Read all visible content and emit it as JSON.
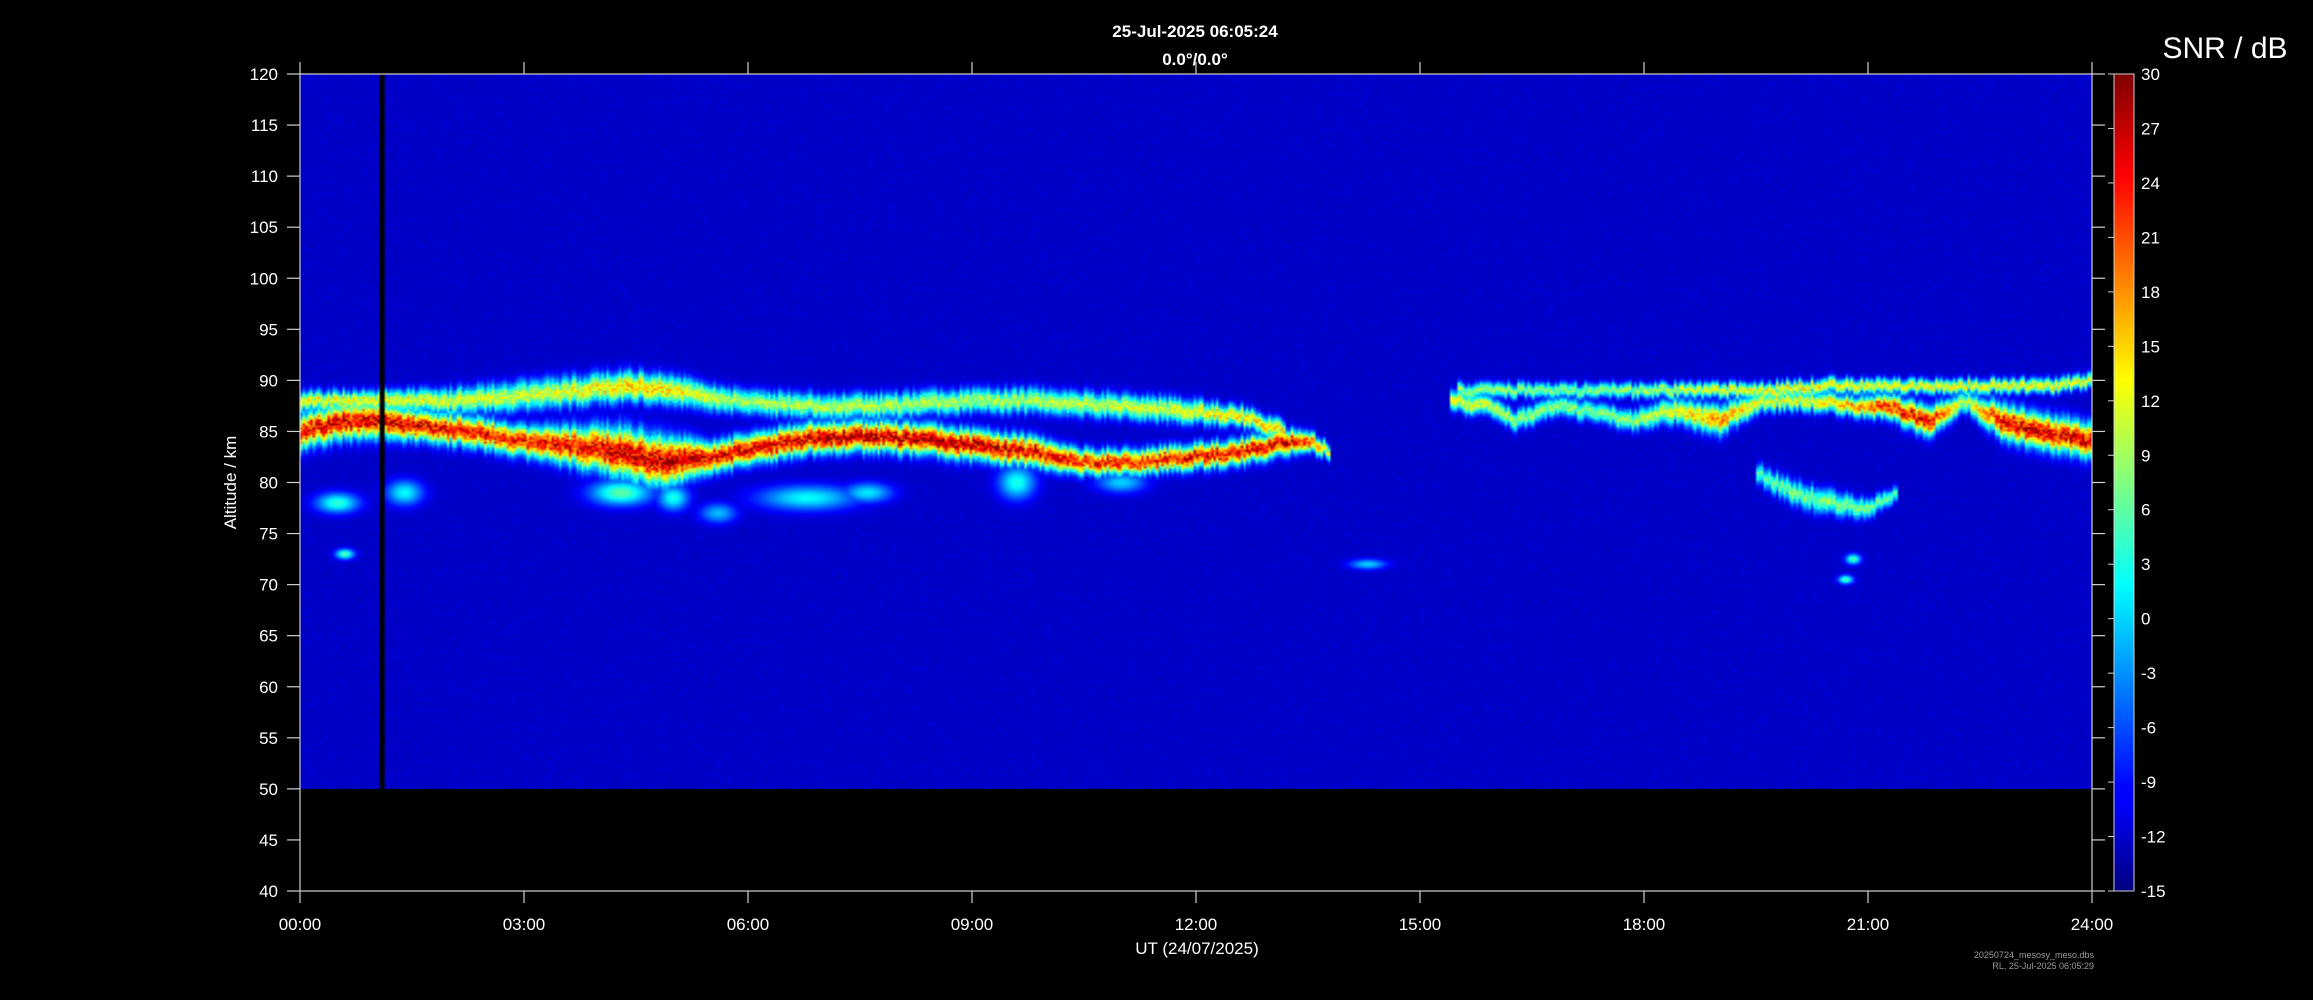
{
  "chart_data": {
    "type": "heatmap",
    "title": "25-Jul-2025 06:05:24",
    "subtitle": "0.0°/0.0°",
    "xlabel": "UT (24/07/2025)",
    "ylabel": "Altitude / km",
    "x_ticks": [
      "00:00",
      "03:00",
      "06:00",
      "09:00",
      "12:00",
      "15:00",
      "18:00",
      "21:00",
      "24:00"
    ],
    "xlim_hours": [
      0,
      24
    ],
    "ylim": [
      40,
      120
    ],
    "y_ticks": [
      40,
      45,
      50,
      55,
      60,
      65,
      70,
      75,
      80,
      85,
      90,
      95,
      100,
      105,
      110,
      115,
      120
    ],
    "data_altitude_range": [
      50,
      120
    ],
    "data_gap": {
      "start_hour": 1.08,
      "end_hour": 1.15
    },
    "colorbar": {
      "title": "SNR / dB",
      "range": [
        -15,
        30
      ],
      "ticks": [
        30,
        27,
        24,
        21,
        18,
        15,
        12,
        9,
        6,
        3,
        0,
        -3,
        -6,
        -9,
        -12,
        -15
      ],
      "colormap": "jet"
    },
    "background_snr": -12,
    "echo_layers": [
      {
        "name": "",
        "t": [
          0.0,
          0.6,
          1.0,
          1.6,
          2.3,
          3.0,
          3.7,
          4.3,
          4.9,
          5.5,
          6.2,
          7.0,
          7.8,
          8.6,
          9.2,
          9.8,
          10.5,
          11.2,
          12.0,
          12.6,
          13.2,
          13.5,
          13.8
        ],
        "alt": [
          85,
          86,
          86,
          85.5,
          85,
          84,
          83.5,
          83,
          82,
          82.5,
          83.5,
          84.5,
          84.5,
          84,
          83.5,
          83,
          82,
          82,
          82.5,
          83,
          84,
          84,
          83
        ],
        "thickness": [
          3.5,
          3.5,
          3.5,
          3,
          3,
          3,
          4,
          5,
          5,
          3,
          3,
          3,
          3,
          3,
          3,
          3,
          2.5,
          2.5,
          2.5,
          2.5,
          2.5,
          2,
          1.5
        ],
        "peak_snr": [
          26,
          28,
          28,
          27,
          26,
          25,
          26,
          28,
          29,
          27,
          27,
          29,
          29,
          29,
          28,
          27,
          25,
          25,
          26,
          27,
          27,
          24,
          12
        ]
      },
      {
        "name": "",
        "t": [
          0.0,
          1.0,
          2.0,
          3.0,
          3.8,
          4.4,
          5.0,
          5.8,
          6.8,
          7.8,
          9.0,
          9.8,
          11.0,
          11.8,
          12.6,
          13.2
        ],
        "alt": [
          88,
          88,
          88,
          88.5,
          89,
          89.5,
          89,
          88,
          87.5,
          87.5,
          88,
          88,
          87.5,
          87,
          86.5,
          85
        ],
        "thickness": [
          2,
          2,
          2.5,
          3,
          3,
          3,
          3,
          2.5,
          2.5,
          2.5,
          2.5,
          2.5,
          2.5,
          2.5,
          2,
          2
        ],
        "peak_snr": [
          14,
          14,
          13,
          12,
          14,
          17,
          15,
          10,
          11,
          11,
          10,
          11,
          12,
          13,
          16,
          16
        ]
      },
      {
        "name": "",
        "t": [
          15.4,
          15.9,
          16.3,
          16.8,
          17.3,
          17.8,
          18.4,
          19.0,
          19.6,
          20.2,
          20.8,
          21.3,
          21.8,
          22.3,
          22.8,
          23.3,
          23.7,
          24.0
        ],
        "alt": [
          88,
          87.5,
          86,
          87.5,
          87,
          86,
          87,
          86,
          88,
          88,
          87.5,
          87.5,
          86,
          88,
          86,
          85,
          84.5,
          84
        ],
        "thickness": [
          2,
          2,
          2,
          2,
          2,
          2,
          2.5,
          3,
          2,
          2,
          2,
          2.5,
          3,
          2,
          3.5,
          3.5,
          3.5,
          3.5
        ],
        "peak_snr": [
          14,
          12,
          10,
          9,
          8,
          10,
          13,
          20,
          13,
          14,
          18,
          24,
          27,
          10,
          27,
          28,
          27,
          26
        ]
      },
      {
        "name": "",
        "t": [
          15.5,
          16.5,
          17.5,
          18.5,
          19.5,
          20.5,
          21.0,
          21.5,
          22.5,
          23.5,
          24.0
        ],
        "alt": [
          89,
          89,
          89,
          89,
          89,
          89.5,
          89.5,
          89.5,
          89.5,
          89.5,
          90
        ],
        "thickness": [
          1.5,
          1.5,
          1.5,
          1.5,
          1.5,
          1.5,
          1.5,
          1.5,
          1.5,
          1.5,
          1.5
        ],
        "peak_snr": [
          10,
          9,
          8,
          12,
          15,
          15,
          14,
          13,
          14,
          14,
          14
        ]
      },
      {
        "name": "",
        "t": [
          19.5,
          20.0,
          20.5,
          21.0,
          21.4
        ],
        "alt": [
          81,
          79,
          78,
          77.5,
          79
        ],
        "thickness": [
          2,
          2.5,
          2.5,
          2,
          1.5
        ],
        "peak_snr": [
          6,
          8,
          9,
          8,
          6
        ]
      }
    ],
    "echo_patches": [
      {
        "t": 0.5,
        "alt": 78,
        "dt": 0.35,
        "dalt": 1.2,
        "snr": 4
      },
      {
        "t": 1.4,
        "alt": 79,
        "dt": 0.3,
        "dalt": 1.5,
        "snr": 2
      },
      {
        "t": 5.0,
        "alt": 78.5,
        "dt": 0.25,
        "dalt": 1.5,
        "snr": 3
      },
      {
        "t": 5.6,
        "alt": 77,
        "dt": 0.3,
        "dalt": 1.2,
        "snr": -1
      },
      {
        "t": 6.8,
        "alt": 78.5,
        "dt": 0.8,
        "dalt": 1.5,
        "snr": 2
      },
      {
        "t": 7.6,
        "alt": 79,
        "dt": 0.4,
        "dalt": 1.2,
        "snr": 1
      },
      {
        "t": 9.6,
        "alt": 80,
        "dt": 0.3,
        "dalt": 2.0,
        "snr": 3
      },
      {
        "t": 11.0,
        "alt": 80,
        "dt": 0.4,
        "dalt": 1.2,
        "snr": 0
      },
      {
        "t": 4.3,
        "alt": 79,
        "dt": 0.5,
        "dalt": 1.5,
        "snr": 6
      },
      {
        "t": 0.6,
        "alt": 73,
        "dt": 0.15,
        "dalt": 0.6,
        "snr": 6
      },
      {
        "t": 14.3,
        "alt": 72,
        "dt": 0.3,
        "dalt": 0.6,
        "snr": 0
      },
      {
        "t": 20.8,
        "alt": 72.5,
        "dt": 0.12,
        "dalt": 0.6,
        "snr": 6
      },
      {
        "t": 20.7,
        "alt": 70.5,
        "dt": 0.12,
        "dalt": 0.5,
        "snr": 6
      }
    ],
    "footer": [
      "20250724_mesosy_meso.dbs",
      "RL, 25-Jul-2025 06:05:29"
    ]
  }
}
